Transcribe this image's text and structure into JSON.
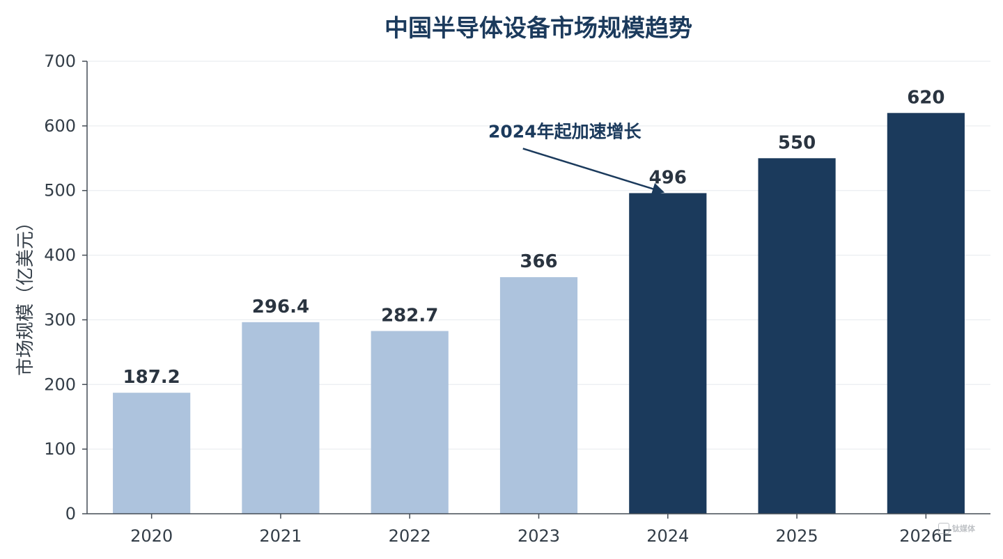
{
  "chart_data": {
    "type": "bar",
    "title": "中国半导体设备市场规模趋势",
    "xlabel": "",
    "ylabel": "市场规模（亿美元）",
    "categories": [
      "2020",
      "2021",
      "2022",
      "2023",
      "2024",
      "2025",
      "2026E"
    ],
    "values": [
      187.2,
      296.4,
      282.7,
      366,
      496,
      550,
      620
    ],
    "value_labels": [
      "187.2",
      "296.4",
      "282.7",
      "366",
      "496",
      "550",
      "620"
    ],
    "ylim": [
      0,
      700
    ],
    "yticks": [
      0,
      100,
      200,
      300,
      400,
      500,
      600,
      700
    ],
    "grid": true,
    "colors": {
      "historical": "#adc3dd",
      "accelerated": "#1b3a5c",
      "accelerated_from_index": 4
    },
    "annotation": {
      "text": "2024年起加速增长",
      "target_category": "2024",
      "target_value": 496
    }
  },
  "watermark": {
    "text": "钛媒体",
    "icon": "logo-mark-icon"
  }
}
